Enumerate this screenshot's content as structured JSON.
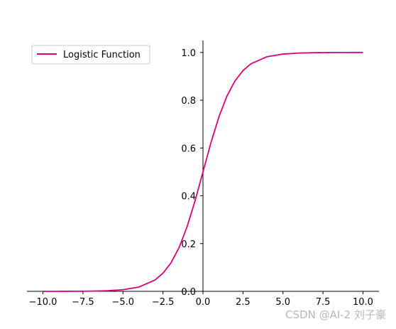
{
  "chart_data": {
    "type": "line",
    "title": "",
    "xlabel": "",
    "ylabel": "",
    "xlim": [
      -11,
      11
    ],
    "ylim": [
      0,
      1.05
    ],
    "x_ticks": [
      -10.0,
      -7.5,
      -5.0,
      -2.5,
      0.0,
      2.5,
      5.0,
      7.5,
      10.0
    ],
    "x_tick_labels": [
      "−10.0",
      "−7.5",
      "−5.0",
      "−2.5",
      "0.0",
      "2.5",
      "5.0",
      "7.5",
      "10.0"
    ],
    "y_ticks": [
      0.0,
      0.2,
      0.4,
      0.6,
      0.8,
      1.0
    ],
    "y_tick_labels": [
      "0.0",
      "0.2",
      "0.4",
      "0.6",
      "0.8",
      "1.0"
    ],
    "grid": false,
    "spines": "centered",
    "legend": {
      "placement": "top-left",
      "entries": [
        "Logistic Function"
      ]
    },
    "series": [
      {
        "name": "Logistic Function",
        "color": "#d9007e",
        "x": [
          -10,
          -9,
          -8,
          -7,
          -6,
          -5,
          -4,
          -3,
          -2.5,
          -2,
          -1.5,
          -1,
          -0.5,
          0,
          0.5,
          1,
          1.5,
          2,
          2.5,
          3,
          4,
          5,
          6,
          7,
          8,
          9,
          10
        ],
        "y": [
          0.0,
          0.0001,
          0.0003,
          0.0009,
          0.0025,
          0.0067,
          0.018,
          0.0474,
          0.0759,
          0.1192,
          0.1824,
          0.2689,
          0.3775,
          0.5,
          0.6225,
          0.7311,
          0.8176,
          0.8808,
          0.9241,
          0.9526,
          0.982,
          0.9933,
          0.9975,
          0.9991,
          0.9997,
          0.9999,
          1.0
        ]
      }
    ]
  },
  "watermark": "CSDN @AI-2  刘子豪"
}
